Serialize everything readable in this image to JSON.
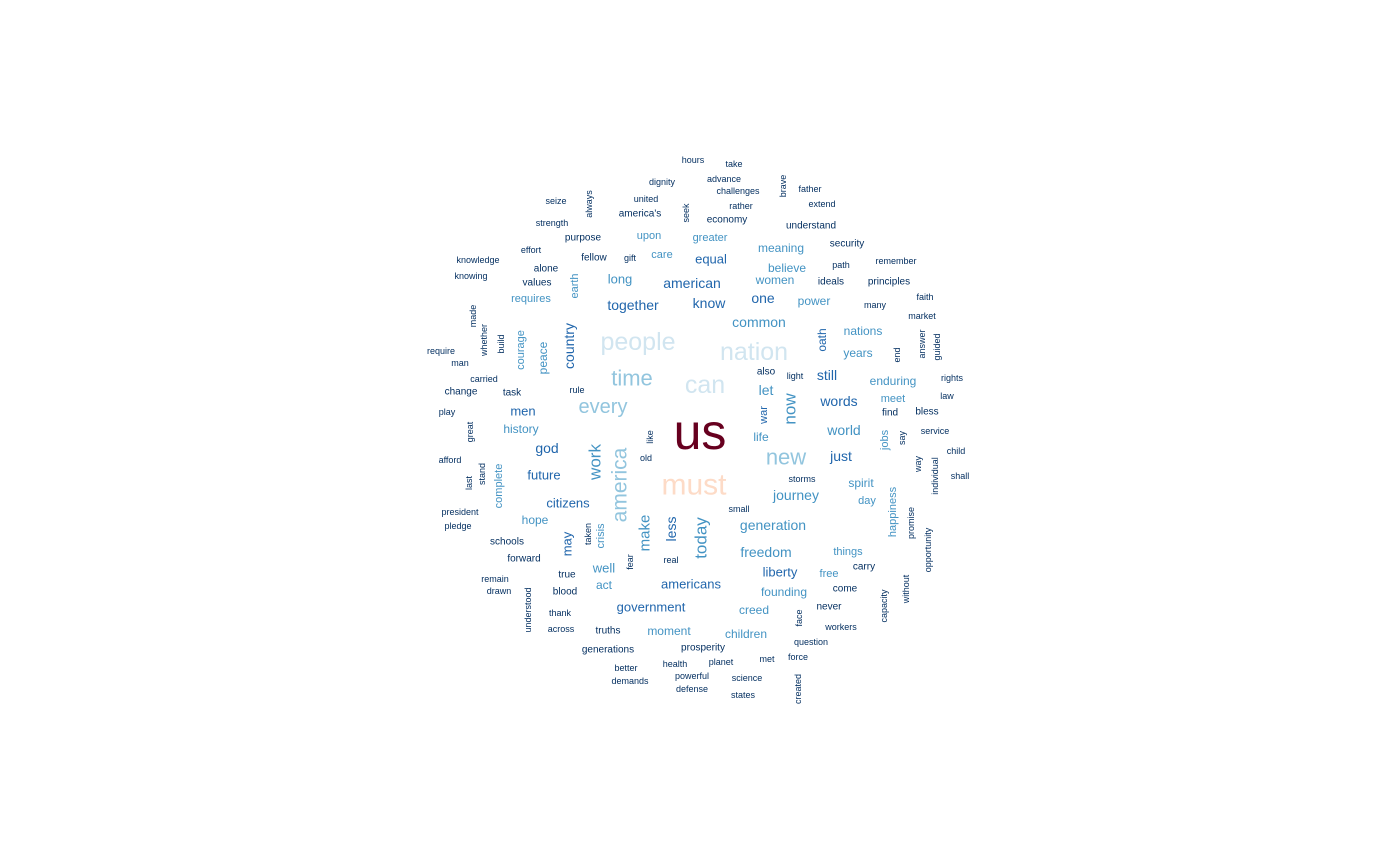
{
  "chart_data": {
    "type": "wordcloud",
    "title": "",
    "palette": {
      "top": "#67001f",
      "second": "#fddbc7",
      "light": "#d1e5f0",
      "pale": "#92c5de",
      "mid": "#4393c3",
      "strong": "#2166ac",
      "deep": "#053061"
    },
    "words": [
      {
        "text": "us",
        "tier": "top",
        "rot": 0
      },
      {
        "text": "must",
        "tier": "second",
        "rot": 0
      },
      {
        "text": "people",
        "tier": "light",
        "rot": 0
      },
      {
        "text": "nation",
        "tier": "light",
        "rot": 0
      },
      {
        "text": "can",
        "tier": "light",
        "rot": 0
      },
      {
        "text": "time",
        "tier": "pale",
        "rot": 0
      },
      {
        "text": "every",
        "tier": "pale",
        "rot": 0
      },
      {
        "text": "new",
        "tier": "pale",
        "rot": 0
      },
      {
        "text": "america",
        "tier": "pale",
        "rot": 1
      },
      {
        "text": "work",
        "tier": "mid",
        "rot": 1
      },
      {
        "text": "today",
        "tier": "mid",
        "rot": 1
      },
      {
        "text": "make",
        "tier": "mid",
        "rot": 1
      },
      {
        "text": "now",
        "tier": "mid",
        "rot": 1
      },
      {
        "text": "freedom",
        "tier": "mid",
        "rot": 0
      },
      {
        "text": "generation",
        "tier": "mid",
        "rot": 0
      },
      {
        "text": "journey",
        "tier": "mid",
        "rot": 0
      },
      {
        "text": "world",
        "tier": "mid",
        "rot": 0
      },
      {
        "text": "common",
        "tier": "mid",
        "rot": 0
      },
      {
        "text": "together",
        "tier": "strong",
        "rot": 0
      },
      {
        "text": "american",
        "tier": "strong",
        "rot": 0
      },
      {
        "text": "know",
        "tier": "strong",
        "rot": 0
      },
      {
        "text": "one",
        "tier": "strong",
        "rot": 0
      },
      {
        "text": "country",
        "tier": "strong",
        "rot": 1
      },
      {
        "text": "god",
        "tier": "strong",
        "rot": 0
      },
      {
        "text": "future",
        "tier": "strong",
        "rot": 0
      },
      {
        "text": "citizens",
        "tier": "strong",
        "rot": 0
      },
      {
        "text": "words",
        "tier": "strong",
        "rot": 0
      },
      {
        "text": "just",
        "tier": "strong",
        "rot": 0
      },
      {
        "text": "still",
        "tier": "strong",
        "rot": 0
      },
      {
        "text": "let",
        "tier": "mid",
        "rot": 0
      },
      {
        "text": "less",
        "tier": "strong",
        "rot": 1
      },
      {
        "text": "may",
        "tier": "strong",
        "rot": 1
      },
      {
        "text": "americans",
        "tier": "strong",
        "rot": 0
      },
      {
        "text": "government",
        "tier": "strong",
        "rot": 0
      },
      {
        "text": "liberty",
        "tier": "strong",
        "rot": 0
      },
      {
        "text": "equal",
        "tier": "strong",
        "rot": 0
      },
      {
        "text": "long",
        "tier": "mid",
        "rot": 0
      },
      {
        "text": "well",
        "tier": "mid",
        "rot": 0
      },
      {
        "text": "men",
        "tier": "strong",
        "rot": 0
      },
      {
        "text": "peace",
        "tier": "mid",
        "rot": 1
      },
      {
        "text": "oath",
        "tier": "strong",
        "rot": 1
      },
      {
        "text": "years",
        "tier": "mid",
        "rot": 0
      },
      {
        "text": "spirit",
        "tier": "mid",
        "rot": 0
      },
      {
        "text": "believe",
        "tier": "mid",
        "rot": 0
      },
      {
        "text": "power",
        "tier": "mid",
        "rot": 0
      },
      {
        "text": "women",
        "tier": "mid",
        "rot": 0
      },
      {
        "text": "meaning",
        "tier": "mid",
        "rot": 0
      },
      {
        "text": "enduring",
        "tier": "mid",
        "rot": 0
      },
      {
        "text": "nations",
        "tier": "mid",
        "rot": 0
      },
      {
        "text": "moment",
        "tier": "mid",
        "rot": 0
      },
      {
        "text": "children",
        "tier": "mid",
        "rot": 0
      },
      {
        "text": "creed",
        "tier": "mid",
        "rot": 0
      },
      {
        "text": "founding",
        "tier": "mid",
        "rot": 0
      },
      {
        "text": "act",
        "tier": "mid",
        "rot": 0
      },
      {
        "text": "hope",
        "tier": "mid",
        "rot": 0
      },
      {
        "text": "history",
        "tier": "mid",
        "rot": 0
      },
      {
        "text": "courage",
        "tier": "mid",
        "rot": 1
      },
      {
        "text": "complete",
        "tier": "mid",
        "rot": 1
      },
      {
        "text": "requires",
        "tier": "mid",
        "rot": 0
      },
      {
        "text": "greater",
        "tier": "mid",
        "rot": 0
      },
      {
        "text": "upon",
        "tier": "mid",
        "rot": 0
      },
      {
        "text": "care",
        "tier": "mid",
        "rot": 0
      },
      {
        "text": "earth",
        "tier": "mid",
        "rot": 1
      },
      {
        "text": "life",
        "tier": "mid",
        "rot": 0
      },
      {
        "text": "meet",
        "tier": "mid",
        "rot": 0
      },
      {
        "text": "jobs",
        "tier": "mid",
        "rot": 1
      },
      {
        "text": "happiness",
        "tier": "mid",
        "rot": 1
      },
      {
        "text": "day",
        "tier": "mid",
        "rot": 0
      },
      {
        "text": "things",
        "tier": "mid",
        "rot": 0
      },
      {
        "text": "free",
        "tier": "mid",
        "rot": 0
      },
      {
        "text": "crisis",
        "tier": "mid",
        "rot": 1
      },
      {
        "text": "war",
        "tier": "strong",
        "rot": 1
      },
      {
        "text": "hours",
        "tier": "deep",
        "rot": 0
      },
      {
        "text": "take",
        "tier": "deep",
        "rot": 0
      },
      {
        "text": "dignity",
        "tier": "deep",
        "rot": 0
      },
      {
        "text": "advance",
        "tier": "deep",
        "rot": 0
      },
      {
        "text": "brave",
        "tier": "deep",
        "rot": 1
      },
      {
        "text": "challenges",
        "tier": "deep",
        "rot": 0
      },
      {
        "text": "father",
        "tier": "deep",
        "rot": 0
      },
      {
        "text": "seize",
        "tier": "deep",
        "rot": 0
      },
      {
        "text": "always",
        "tier": "deep",
        "rot": 1
      },
      {
        "text": "united",
        "tier": "deep",
        "rot": 0
      },
      {
        "text": "seek",
        "tier": "deep",
        "rot": 1
      },
      {
        "text": "rather",
        "tier": "deep",
        "rot": 0
      },
      {
        "text": "extend",
        "tier": "deep",
        "rot": 0
      },
      {
        "text": "america's",
        "tier": "deep",
        "rot": 0
      },
      {
        "text": "economy",
        "tier": "deep",
        "rot": 0
      },
      {
        "text": "strength",
        "tier": "deep",
        "rot": 0
      },
      {
        "text": "understand",
        "tier": "deep",
        "rot": 0
      },
      {
        "text": "purpose",
        "tier": "deep",
        "rot": 0
      },
      {
        "text": "security",
        "tier": "deep",
        "rot": 0
      },
      {
        "text": "effort",
        "tier": "deep",
        "rot": 0
      },
      {
        "text": "knowledge",
        "tier": "deep",
        "rot": 0
      },
      {
        "text": "fellow",
        "tier": "deep",
        "rot": 0
      },
      {
        "text": "gift",
        "tier": "deep",
        "rot": 0
      },
      {
        "text": "remember",
        "tier": "deep",
        "rot": 0
      },
      {
        "text": "path",
        "tier": "deep",
        "rot": 0
      },
      {
        "text": "alone",
        "tier": "deep",
        "rot": 0
      },
      {
        "text": "knowing",
        "tier": "deep",
        "rot": 0
      },
      {
        "text": "values",
        "tier": "deep",
        "rot": 0
      },
      {
        "text": "ideals",
        "tier": "deep",
        "rot": 0
      },
      {
        "text": "principles",
        "tier": "deep",
        "rot": 0
      },
      {
        "text": "faith",
        "tier": "deep",
        "rot": 0
      },
      {
        "text": "made",
        "tier": "deep",
        "rot": 1
      },
      {
        "text": "many",
        "tier": "deep",
        "rot": 0
      },
      {
        "text": "market",
        "tier": "deep",
        "rot": 0
      },
      {
        "text": "whether",
        "tier": "deep",
        "rot": 1
      },
      {
        "text": "build",
        "tier": "deep",
        "rot": 1
      },
      {
        "text": "answer",
        "tier": "deep",
        "rot": 1
      },
      {
        "text": "guided",
        "tier": "deep",
        "rot": 1
      },
      {
        "text": "require",
        "tier": "deep",
        "rot": 0
      },
      {
        "text": "end",
        "tier": "deep",
        "rot": 1
      },
      {
        "text": "man",
        "tier": "deep",
        "rot": 0
      },
      {
        "text": "also",
        "tier": "deep",
        "rot": 0
      },
      {
        "text": "carried",
        "tier": "deep",
        "rot": 0
      },
      {
        "text": "light",
        "tier": "deep",
        "rot": 0
      },
      {
        "text": "rights",
        "tier": "deep",
        "rot": 0
      },
      {
        "text": "change",
        "tier": "deep",
        "rot": 0
      },
      {
        "text": "task",
        "tier": "deep",
        "rot": 0
      },
      {
        "text": "rule",
        "tier": "deep",
        "rot": 0
      },
      {
        "text": "law",
        "tier": "deep",
        "rot": 0
      },
      {
        "text": "play",
        "tier": "deep",
        "rot": 0
      },
      {
        "text": "find",
        "tier": "deep",
        "rot": 0
      },
      {
        "text": "bless",
        "tier": "deep",
        "rot": 0
      },
      {
        "text": "great",
        "tier": "deep",
        "rot": 1
      },
      {
        "text": "service",
        "tier": "deep",
        "rot": 0
      },
      {
        "text": "like",
        "tier": "deep",
        "rot": 1
      },
      {
        "text": "say",
        "tier": "deep",
        "rot": 1
      },
      {
        "text": "child",
        "tier": "deep",
        "rot": 0
      },
      {
        "text": "afford",
        "tier": "deep",
        "rot": 0
      },
      {
        "text": "old",
        "tier": "deep",
        "rot": 0
      },
      {
        "text": "way",
        "tier": "deep",
        "rot": 1
      },
      {
        "text": "individual",
        "tier": "deep",
        "rot": 1
      },
      {
        "text": "stand",
        "tier": "deep",
        "rot": 1
      },
      {
        "text": "shall",
        "tier": "deep",
        "rot": 0
      },
      {
        "text": "last",
        "tier": "deep",
        "rot": 1
      },
      {
        "text": "storms",
        "tier": "deep",
        "rot": 0
      },
      {
        "text": "president",
        "tier": "deep",
        "rot": 0
      },
      {
        "text": "small",
        "tier": "deep",
        "rot": 0
      },
      {
        "text": "pledge",
        "tier": "deep",
        "rot": 0
      },
      {
        "text": "promise",
        "tier": "deep",
        "rot": 1
      },
      {
        "text": "taken",
        "tier": "deep",
        "rot": 1
      },
      {
        "text": "schools",
        "tier": "deep",
        "rot": 0
      },
      {
        "text": "opportunity",
        "tier": "deep",
        "rot": 1
      },
      {
        "text": "fear",
        "tier": "deep",
        "rot": 1
      },
      {
        "text": "forward",
        "tier": "deep",
        "rot": 0
      },
      {
        "text": "real",
        "tier": "deep",
        "rot": 0
      },
      {
        "text": "carry",
        "tier": "deep",
        "rot": 0
      },
      {
        "text": "true",
        "tier": "deep",
        "rot": 0
      },
      {
        "text": "remain",
        "tier": "deep",
        "rot": 0
      },
      {
        "text": "without",
        "tier": "deep",
        "rot": 1
      },
      {
        "text": "drawn",
        "tier": "deep",
        "rot": 0
      },
      {
        "text": "blood",
        "tier": "deep",
        "rot": 0
      },
      {
        "text": "come",
        "tier": "deep",
        "rot": 0
      },
      {
        "text": "understood",
        "tier": "deep",
        "rot": 1
      },
      {
        "text": "capacity",
        "tier": "deep",
        "rot": 1
      },
      {
        "text": "thank",
        "tier": "deep",
        "rot": 0
      },
      {
        "text": "face",
        "tier": "deep",
        "rot": 1
      },
      {
        "text": "never",
        "tier": "deep",
        "rot": 0
      },
      {
        "text": "across",
        "tier": "deep",
        "rot": 0
      },
      {
        "text": "truths",
        "tier": "deep",
        "rot": 0
      },
      {
        "text": "workers",
        "tier": "deep",
        "rot": 0
      },
      {
        "text": "question",
        "tier": "deep",
        "rot": 0
      },
      {
        "text": "generations",
        "tier": "deep",
        "rot": 0
      },
      {
        "text": "prosperity",
        "tier": "deep",
        "rot": 0
      },
      {
        "text": "force",
        "tier": "deep",
        "rot": 0
      },
      {
        "text": "met",
        "tier": "deep",
        "rot": 0
      },
      {
        "text": "better",
        "tier": "deep",
        "rot": 0
      },
      {
        "text": "health",
        "tier": "deep",
        "rot": 0
      },
      {
        "text": "planet",
        "tier": "deep",
        "rot": 0
      },
      {
        "text": "powerful",
        "tier": "deep",
        "rot": 0
      },
      {
        "text": "demands",
        "tier": "deep",
        "rot": 0
      },
      {
        "text": "science",
        "tier": "deep",
        "rot": 0
      },
      {
        "text": "created",
        "tier": "deep",
        "rot": 1
      },
      {
        "text": "defense",
        "tier": "deep",
        "rot": 0
      },
      {
        "text": "states",
        "tier": "deep",
        "rot": 0
      }
    ]
  }
}
